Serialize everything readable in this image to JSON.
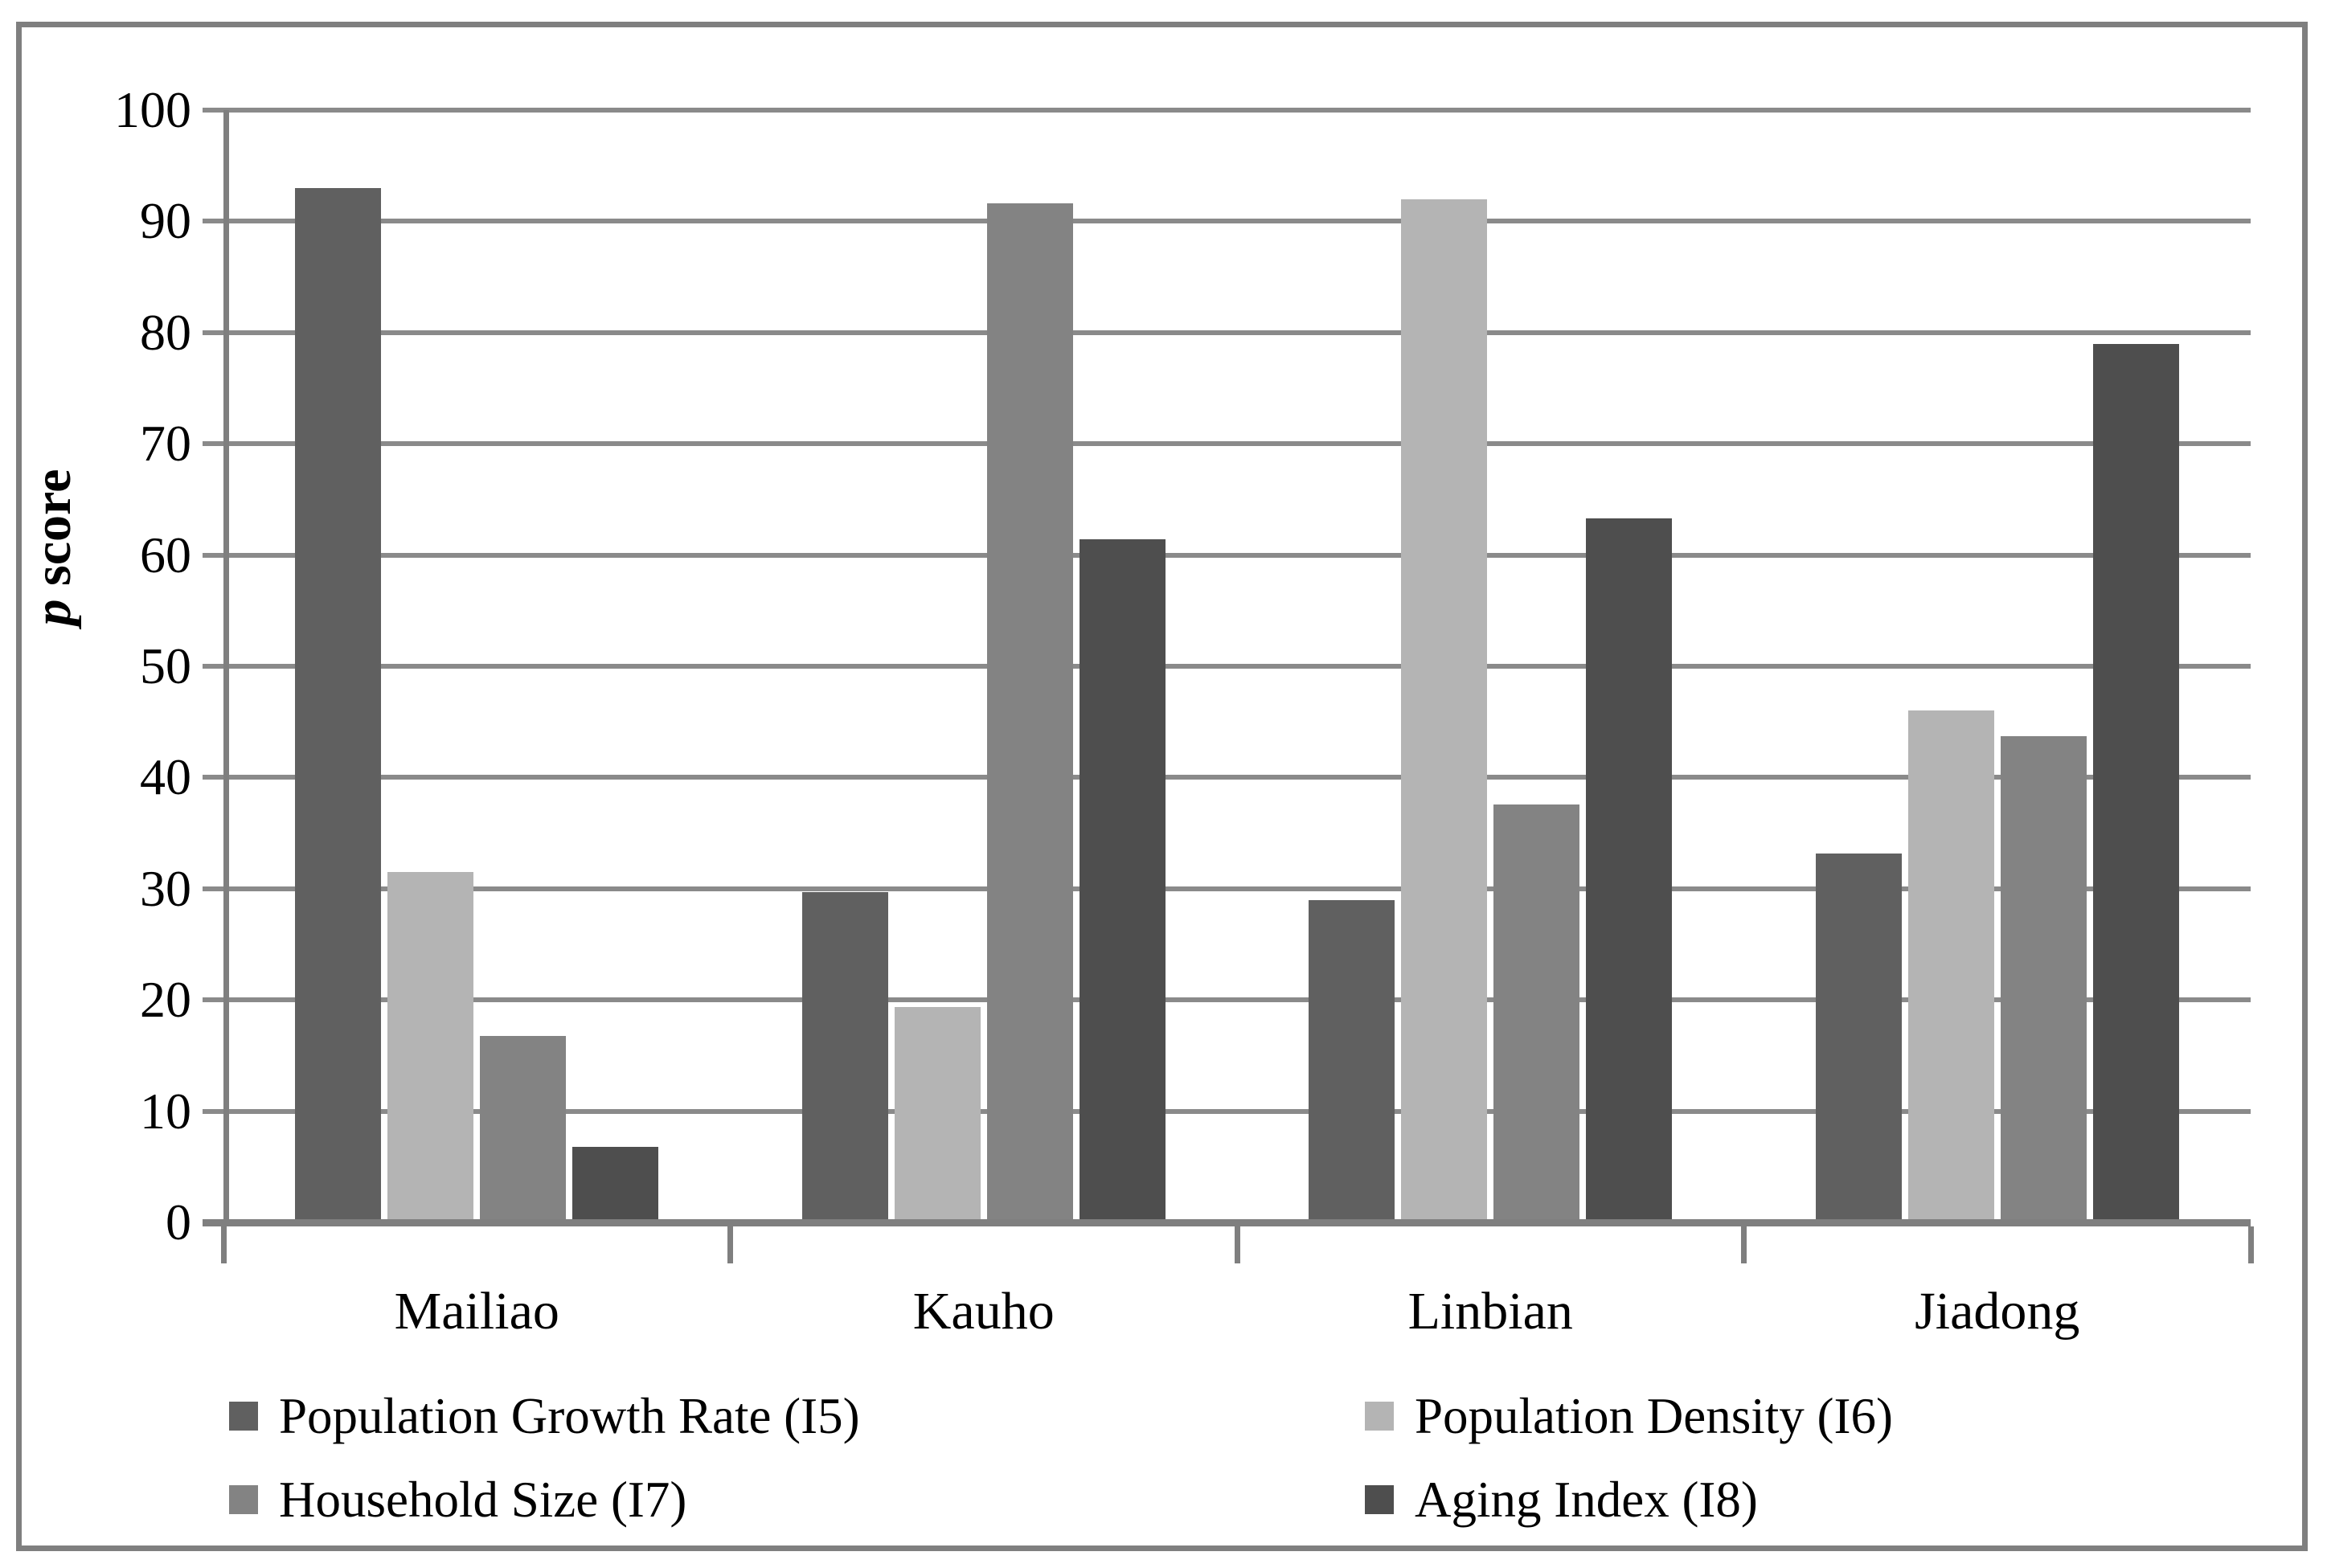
{
  "chart_data": {
    "type": "bar",
    "title": "",
    "categories": [
      "Mailiao",
      "Kauho",
      "Linbian",
      "Jiadong"
    ],
    "series": [
      {
        "name": "Population Growth Rate (I5)",
        "code": "i5",
        "color": "#606060",
        "values": [
          93,
          29.7,
          29,
          33.2
        ]
      },
      {
        "name": "Population Density (I6)",
        "code": "i6",
        "color": "#b4b4b4",
        "values": [
          31.5,
          19.4,
          92,
          46
        ]
      },
      {
        "name": "Household Size (I7)",
        "code": "i7",
        "color": "#838383",
        "values": [
          16.8,
          91.6,
          37.6,
          43.7
        ]
      },
      {
        "name": "Aging Index (I8)",
        "code": "i8",
        "color": "#4e4e4e",
        "values": [
          6.8,
          61.4,
          63.3,
          79
        ]
      }
    ],
    "xlabel": "",
    "ylabel": "p score",
    "ylabel_italic_part": "p",
    "ylabel_regular_part": " score",
    "ylim": [
      0,
      100
    ],
    "yticks": [
      0,
      10,
      20,
      30,
      40,
      50,
      60,
      70,
      80,
      90,
      100
    ],
    "grid": true,
    "legend_position": "bottom-two-columns"
  },
  "style": {
    "gridline_color": "#8a8a8a",
    "axis_color": "#7f7f7f",
    "frame_border_color": "#808080",
    "text_color": "#000000",
    "background": "#ffffff"
  }
}
